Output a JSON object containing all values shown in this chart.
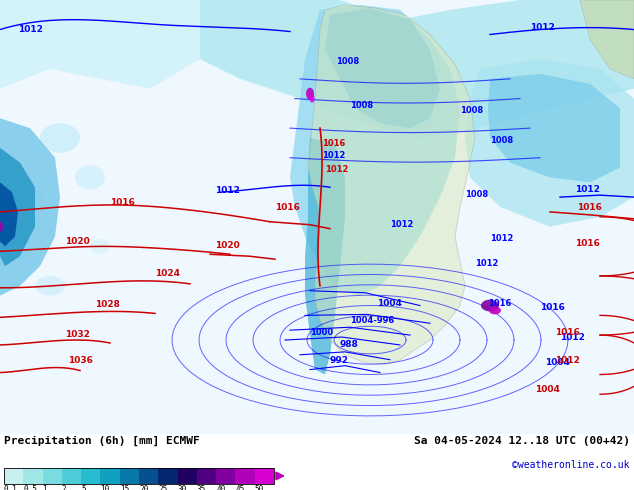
{
  "title_left": "Precipitation (6h) [mm] ECMWF",
  "title_right": "Sa 04-05-2024 12..18 UTC (00+42)",
  "credit": "©weatheronline.co.uk",
  "colorbar_values": [
    "0.1",
    "0.5",
    "1",
    "2",
    "5",
    "10",
    "15",
    "20",
    "25",
    "30",
    "35",
    "40",
    "45",
    "50"
  ],
  "colorbar_colors": [
    "#c8f0f0",
    "#a0e8e8",
    "#78dce0",
    "#50ccd8",
    "#28bcd0",
    "#10a0c0",
    "#0878a8",
    "#065090",
    "#042870",
    "#200060",
    "#500080",
    "#8000a0",
    "#b000b8",
    "#d800d0"
  ],
  "figure_width": 6.34,
  "figure_height": 4.9,
  "dpi": 100
}
